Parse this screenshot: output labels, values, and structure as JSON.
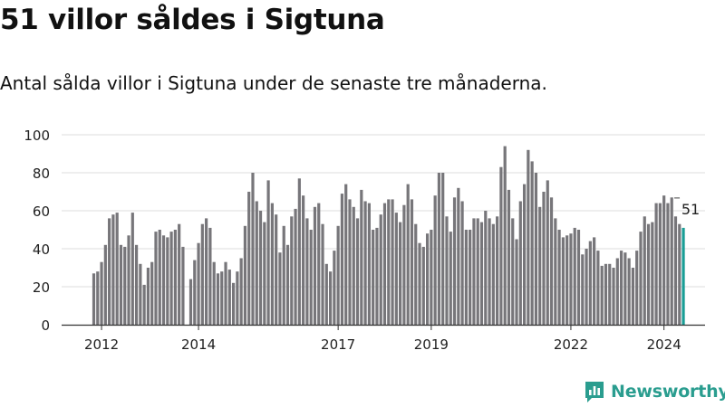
{
  "title": "51 villor såldes i Sigtuna",
  "subtitle": "Antal sålda villor i Sigtuna under de senaste tre månaderna.",
  "brand": {
    "name": "Newsworthy",
    "icon": "bar-chart-logo-icon"
  },
  "colors": {
    "bar": "#77767a",
    "highlight": "#1a9e96",
    "grid": "#dddddd",
    "brand": "#2a9d8f"
  },
  "chart_data": {
    "type": "bar",
    "title": "Antal sålda villor i Sigtuna",
    "xlabel": "",
    "ylabel": "",
    "ylim": [
      0,
      100
    ],
    "yticks": [
      0,
      20,
      40,
      60,
      80,
      100
    ],
    "x_start": "2011-11",
    "interval": "month",
    "xtick_labels": [
      {
        "label": "2012",
        "index": 2
      },
      {
        "label": "2014",
        "index": 27
      },
      {
        "label": "2017",
        "index": 63
      },
      {
        "label": "2019",
        "index": 87
      },
      {
        "label": "2022",
        "index": 123
      },
      {
        "label": "2024",
        "index": 147
      }
    ],
    "values": [
      27,
      28,
      33,
      42,
      56,
      58,
      59,
      42,
      41,
      47,
      59,
      42,
      32,
      21,
      30,
      33,
      49,
      50,
      47,
      46,
      49,
      50,
      53,
      41,
      0,
      24,
      34,
      43,
      53,
      56,
      51,
      33,
      27,
      28,
      33,
      29,
      22,
      28,
      35,
      52,
      70,
      80,
      65,
      60,
      54,
      76,
      64,
      58,
      38,
      52,
      42,
      57,
      61,
      77,
      68,
      56,
      50,
      62,
      64,
      53,
      32,
      28,
      39,
      52,
      69,
      74,
      66,
      62,
      56,
      71,
      65,
      64,
      50,
      51,
      58,
      64,
      66,
      66,
      59,
      54,
      63,
      74,
      66,
      53,
      43,
      41,
      48,
      50,
      68,
      80,
      80,
      57,
      49,
      67,
      72,
      65,
      50,
      50,
      56,
      56,
      54,
      60,
      56,
      53,
      57,
      83,
      94,
      71,
      56,
      45,
      65,
      74,
      92,
      86,
      80,
      62,
      70,
      76,
      67,
      56,
      50,
      46,
      47,
      48,
      51,
      50,
      37,
      40,
      44,
      46,
      39,
      31,
      32,
      32,
      30,
      35,
      39,
      38,
      35,
      30,
      39,
      49,
      57,
      53,
      54,
      64,
      64,
      68,
      64,
      67,
      57,
      53,
      51
    ],
    "annotation": {
      "text": "51",
      "index": 152
    }
  }
}
